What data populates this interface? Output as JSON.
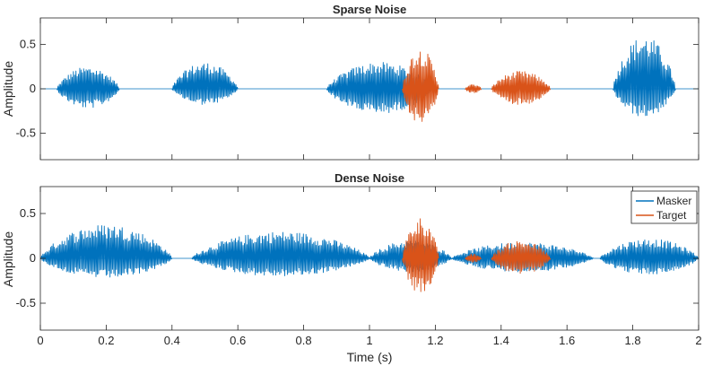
{
  "chart_data": [
    {
      "type": "line",
      "title": "Sparse Noise",
      "xlabel": "",
      "ylabel": "Amplitude",
      "xlim": [
        0,
        2
      ],
      "ylim": [
        -0.8,
        0.8
      ],
      "xticks": [
        0,
        0.2,
        0.4,
        0.6,
        0.8,
        1,
        1.2,
        1.4,
        1.6,
        1.8,
        2
      ],
      "xtick_labels": [
        "",
        "",
        "",
        "",
        "",
        "",
        "",
        "",
        "",
        "",
        ""
      ],
      "yticks": [
        -0.5,
        0,
        0.5
      ],
      "ytick_labels": [
        "-0.5",
        "0",
        "0.5"
      ],
      "grid": false,
      "legend": null,
      "series": [
        {
          "color": "#0072BD",
          "segments": [
            {
              "start": 0.05,
              "end": 0.24,
              "peak_pos": 0.25,
              "peak_neg": 0.22
            },
            {
              "start": 0.4,
              "end": 0.6,
              "peak_pos": 0.3,
              "peak_neg": 0.18
            },
            {
              "start": 0.87,
              "end": 1.19,
              "peak_pos": 0.3,
              "peak_neg": 0.28
            },
            {
              "start": 1.74,
              "end": 1.93,
              "peak_pos": 0.6,
              "peak_neg": 0.32
            }
          ]
        },
        {
          "color": "#D95319",
          "segments": [
            {
              "start": 1.1,
              "end": 1.21,
              "peak_pos": 0.46,
              "peak_neg": 0.4
            },
            {
              "start": 1.29,
              "end": 1.34,
              "peak_pos": 0.05,
              "peak_neg": 0.05
            },
            {
              "start": 1.37,
              "end": 1.55,
              "peak_pos": 0.2,
              "peak_neg": 0.18
            }
          ]
        }
      ]
    },
    {
      "type": "line",
      "title": "Dense Noise",
      "xlabel": "Time (s)",
      "ylabel": "Amplitude",
      "xlim": [
        0,
        2
      ],
      "ylim": [
        -0.8,
        0.8
      ],
      "xticks": [
        0,
        0.2,
        0.4,
        0.6,
        0.8,
        1,
        1.2,
        1.4,
        1.6,
        1.8,
        2
      ],
      "xtick_labels": [
        "0",
        "0.2",
        "0.4",
        "0.6",
        "0.8",
        "1",
        "1.2",
        "1.4",
        "1.6",
        "1.8",
        "2"
      ],
      "yticks": [
        -0.5,
        0,
        0.5
      ],
      "ytick_labels": [
        "-0.5",
        "0",
        "0.5"
      ],
      "grid": false,
      "legend": "top-right",
      "series": [
        {
          "name": "Masker",
          "color": "#0072BD",
          "segments": [
            {
              "start": 0.0,
              "end": 0.4,
              "peak_pos": 0.38,
              "peak_neg": 0.22
            },
            {
              "start": 0.46,
              "end": 1.0,
              "peak_pos": 0.3,
              "peak_neg": 0.2
            },
            {
              "start": 1.0,
              "end": 1.25,
              "peak_pos": 0.2,
              "peak_neg": 0.15
            },
            {
              "start": 1.25,
              "end": 1.68,
              "peak_pos": 0.18,
              "peak_neg": 0.15
            },
            {
              "start": 1.7,
              "end": 2.0,
              "peak_pos": 0.22,
              "peak_neg": 0.18
            }
          ]
        },
        {
          "name": "Target",
          "color": "#D95319",
          "segments": [
            {
              "start": 1.1,
              "end": 1.21,
              "peak_pos": 0.46,
              "peak_neg": 0.4
            },
            {
              "start": 1.29,
              "end": 1.34,
              "peak_pos": 0.05,
              "peak_neg": 0.05
            },
            {
              "start": 1.37,
              "end": 1.55,
              "peak_pos": 0.2,
              "peak_neg": 0.18
            }
          ]
        }
      ]
    }
  ]
}
